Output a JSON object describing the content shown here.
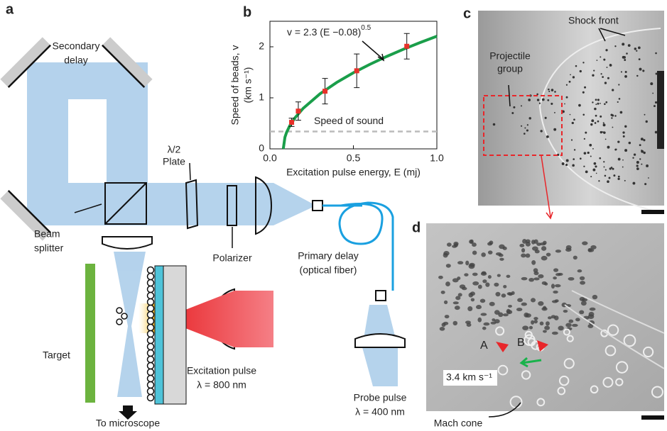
{
  "panels": {
    "a": {
      "letter": "a",
      "secondary_delay": [
        "Secondary",
        "delay"
      ],
      "half_wave_plate": [
        "λ/2",
        "Plate"
      ],
      "beam_splitter": [
        "Beam",
        "splitter"
      ],
      "polarizer": "Polarizer",
      "primary_delay": [
        "Primary delay",
        "(optical fiber)"
      ],
      "target": "Target",
      "excitation": [
        "Excitation pulse",
        "λ = 800 nm"
      ],
      "probe": [
        "Probe pulse",
        "λ = 400 nm"
      ],
      "microscope": "To microscope"
    },
    "c": {
      "letter": "c",
      "shock_front": "Shock front",
      "projectile_group": [
        "Projectile",
        "group"
      ]
    },
    "d": {
      "letter": "d",
      "bead_a": "A",
      "bead_b": "B",
      "speed": "3.4 km s⁻¹",
      "mach_cone": "Mach cone"
    }
  },
  "chart_data": {
    "type": "scatter",
    "panel": "b",
    "annotation": {
      "text": "v = 2.3 (E −0.08)",
      "exponent": "0.5"
    },
    "xlabel": "Excitation pulse energy, E (mj)",
    "ylabel": [
      "Speed of beads, v",
      "(km s⁻¹)"
    ],
    "x": [
      0.13,
      0.17,
      0.33,
      0.52,
      0.82
    ],
    "values": [
      0.52,
      0.74,
      1.13,
      1.53,
      2.01
    ],
    "errors": [
      0.08,
      0.18,
      0.25,
      0.33,
      0.25
    ],
    "color": "#e8312a",
    "fit_color": "#1a9e4a",
    "fit_x": [
      0.08,
      0.09,
      0.1,
      0.12,
      0.15,
      0.2,
      0.3,
      0.4,
      0.5,
      0.6,
      0.7,
      0.8,
      0.9,
      1.0
    ],
    "fit_values": [
      0,
      0.23,
      0.325,
      0.46,
      0.608,
      0.797,
      1.079,
      1.301,
      1.491,
      1.658,
      1.811,
      1.952,
      2.083,
      2.206
    ],
    "reference_line": {
      "value": 0.34,
      "label": "Speed of sound"
    },
    "xlim": [
      0,
      1
    ],
    "ylim": [
      0,
      2.5
    ],
    "xticks": [
      {
        "value": 0,
        "label": "0.0"
      },
      {
        "value": 0.5,
        "label": "0.5"
      },
      {
        "value": 1,
        "label": "1.0"
      }
    ],
    "yticks": [
      0,
      1,
      2
    ]
  }
}
